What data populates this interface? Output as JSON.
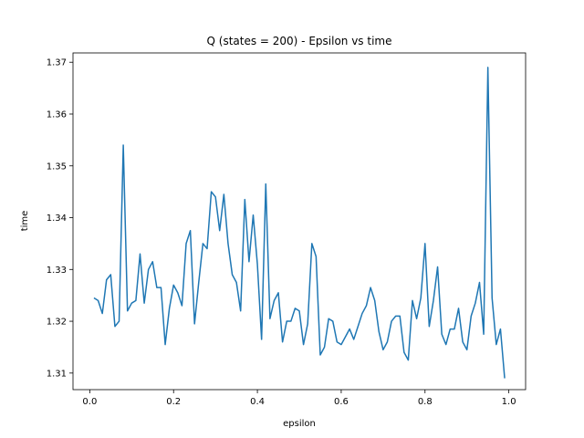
{
  "chart_data": {
    "type": "line",
    "title": "Q (states = 200) - Epsilon vs time",
    "xlabel": "epsilon",
    "ylabel": "time",
    "xlim": [
      -0.04,
      1.04
    ],
    "ylim": [
      1.3068,
      1.3718
    ],
    "grid": false,
    "x_ticks": [
      0.0,
      0.2,
      0.4,
      0.6,
      0.8,
      1.0
    ],
    "x_tick_labels": [
      "0.0",
      "0.2",
      "0.4",
      "0.6",
      "0.8",
      "1.0"
    ],
    "y_ticks": [
      1.31,
      1.32,
      1.33,
      1.34,
      1.35,
      1.36,
      1.37
    ],
    "y_tick_labels": [
      "1.31",
      "1.32",
      "1.33",
      "1.34",
      "1.35",
      "1.36",
      "1.37"
    ],
    "series": [
      {
        "color": "#1f77b4",
        "x": [
          0.01,
          0.02,
          0.03,
          0.04,
          0.05,
          0.06,
          0.07,
          0.08,
          0.09,
          0.1,
          0.11,
          0.12,
          0.13,
          0.14,
          0.15,
          0.16,
          0.17,
          0.18,
          0.19,
          0.2,
          0.21,
          0.22,
          0.23,
          0.24,
          0.25,
          0.26,
          0.27,
          0.28,
          0.29,
          0.3,
          0.31,
          0.32,
          0.33,
          0.34,
          0.35,
          0.36,
          0.37,
          0.38,
          0.39,
          0.4,
          0.41,
          0.42,
          0.43,
          0.44,
          0.45,
          0.46,
          0.47,
          0.48,
          0.49,
          0.5,
          0.51,
          0.52,
          0.53,
          0.54,
          0.55,
          0.56,
          0.57,
          0.58,
          0.59,
          0.6,
          0.61,
          0.62,
          0.63,
          0.64,
          0.65,
          0.66,
          0.67,
          0.68,
          0.69,
          0.7,
          0.71,
          0.72,
          0.73,
          0.74,
          0.75,
          0.76,
          0.77,
          0.78,
          0.79,
          0.8,
          0.81,
          0.82,
          0.83,
          0.84,
          0.85,
          0.86,
          0.87,
          0.88,
          0.89,
          0.9,
          0.91,
          0.92,
          0.93,
          0.94,
          0.95,
          0.96,
          0.97,
          0.98,
          0.99
        ],
        "y": [
          1.3245,
          1.324,
          1.3215,
          1.328,
          1.329,
          1.319,
          1.32,
          1.354,
          1.322,
          1.3235,
          1.324,
          1.333,
          1.3235,
          1.33,
          1.3315,
          1.3265,
          1.3265,
          1.3155,
          1.3225,
          1.327,
          1.3255,
          1.323,
          1.335,
          1.3375,
          1.3195,
          1.3275,
          1.335,
          1.334,
          1.345,
          1.344,
          1.3375,
          1.3445,
          1.335,
          1.329,
          1.3275,
          1.322,
          1.3435,
          1.3315,
          1.3405,
          1.331,
          1.3165,
          1.3465,
          1.3205,
          1.324,
          1.3255,
          1.316,
          1.32,
          1.32,
          1.3225,
          1.322,
          1.3155,
          1.3195,
          1.335,
          1.3325,
          1.3135,
          1.315,
          1.3205,
          1.32,
          1.316,
          1.3155,
          1.317,
          1.3185,
          1.3165,
          1.319,
          1.3215,
          1.323,
          1.3265,
          1.324,
          1.318,
          1.3145,
          1.316,
          1.32,
          1.321,
          1.321,
          1.314,
          1.3125,
          1.324,
          1.3205,
          1.3245,
          1.335,
          1.319,
          1.324,
          1.3305,
          1.3175,
          1.3155,
          1.3185,
          1.3185,
          1.3225,
          1.316,
          1.3145,
          1.321,
          1.3235,
          1.3275,
          1.3175,
          1.369,
          1.3245,
          1.3155,
          1.3185,
          1.309
        ]
      }
    ]
  }
}
